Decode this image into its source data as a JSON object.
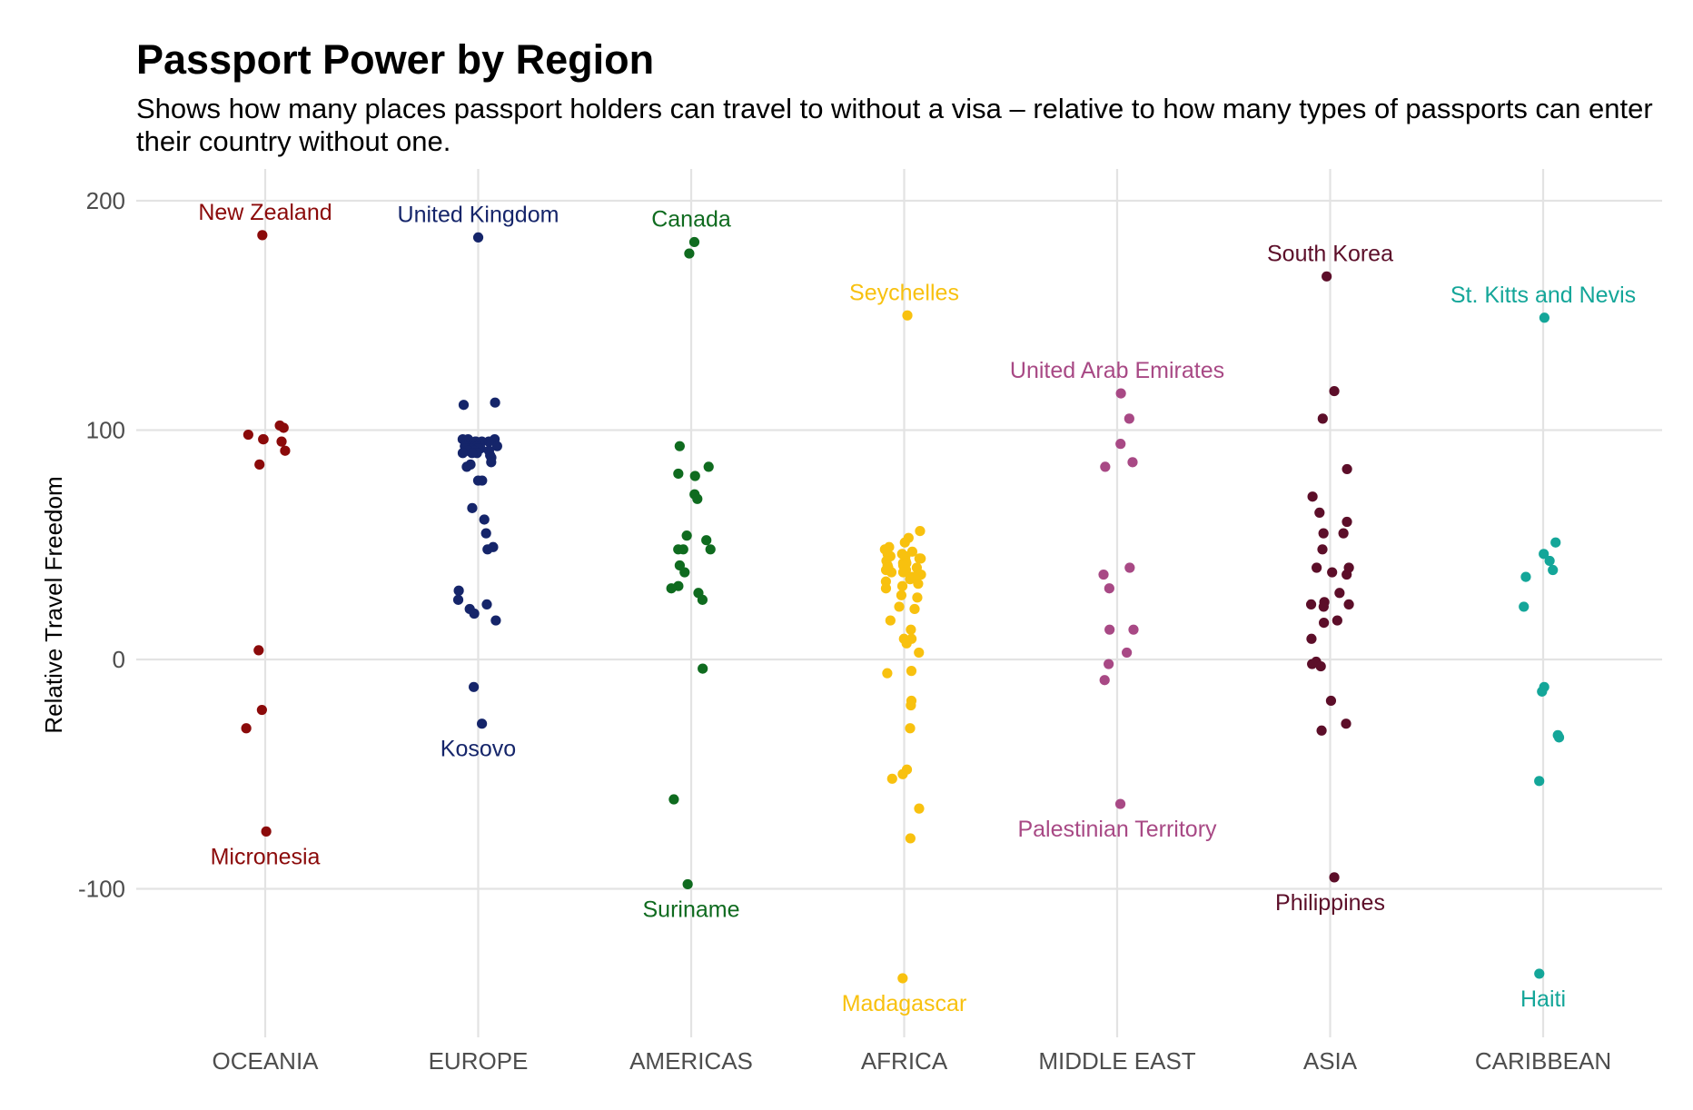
{
  "chart_data": {
    "type": "scatter",
    "title": "Passport Power by Region",
    "subtitle": "Shows how many places passport holders can travel to without a visa – relative to how many types of passports can enter their country without one.",
    "xlabel": "",
    "ylabel": "Relative Travel Freedom",
    "ylim": [
      -165,
      215
    ],
    "yticks": [
      -100,
      0,
      100,
      200
    ],
    "grid": true,
    "legend": "none",
    "categories": [
      "OCEANIA",
      "EUROPE",
      "AMERICAS",
      "AFRICA",
      "MIDDLE EAST",
      "ASIA",
      "CARIBBEAN"
    ],
    "series": [
      {
        "category": "OCEANIA",
        "color": "#8B0A0A",
        "values": [
          185,
          102,
          101,
          98,
          96,
          96,
          95,
          91,
          85,
          4,
          -22,
          -30,
          -75
        ],
        "labels": [
          {
            "text": "New Zealand",
            "value": 185,
            "position": "above"
          },
          {
            "text": "Micronesia",
            "value": -75,
            "position": "below"
          }
        ]
      },
      {
        "category": "EUROPE",
        "color": "#15256A",
        "values": [
          184,
          112,
          111,
          96,
          96,
          96,
          95,
          95,
          95,
          95,
          95,
          94,
          94,
          94,
          94,
          93,
          93,
          93,
          93,
          92,
          92,
          92,
          92,
          91,
          91,
          91,
          90,
          90,
          90,
          89,
          88,
          86,
          85,
          84,
          78,
          78,
          66,
          61,
          55,
          49,
          48,
          30,
          26,
          24,
          22,
          20,
          17,
          -12,
          -28
        ],
        "labels": [
          {
            "text": "United Kingdom",
            "value": 184,
            "position": "above"
          },
          {
            "text": "Kosovo",
            "value": -28,
            "position": "below"
          }
        ]
      },
      {
        "category": "AMERICAS",
        "color": "#0F6B1F",
        "values": [
          182,
          177,
          93,
          84,
          81,
          80,
          72,
          70,
          54,
          52,
          48,
          48,
          48,
          41,
          38,
          32,
          31,
          29,
          26,
          -4,
          -61,
          -98
        ],
        "labels": [
          {
            "text": "Canada",
            "value": 182,
            "position": "above"
          },
          {
            "text": "Suriname",
            "value": -98,
            "position": "below"
          }
        ]
      },
      {
        "category": "AFRICA",
        "color": "#F8C10F",
        "values": [
          150,
          56,
          53,
          51,
          49,
          48,
          47,
          46,
          46,
          45,
          45,
          44,
          44,
          43,
          43,
          42,
          42,
          41,
          41,
          40,
          40,
          39,
          39,
          38,
          38,
          37,
          37,
          36,
          36,
          35,
          34,
          33,
          32,
          31,
          28,
          27,
          23,
          22,
          17,
          13,
          9,
          9,
          7,
          3,
          -5,
          -6,
          -18,
          -20,
          -30,
          -48,
          -50,
          -52,
          -65,
          -78,
          -139
        ],
        "labels": [
          {
            "text": "Seychelles",
            "value": 150,
            "position": "above"
          },
          {
            "text": "Madagascar",
            "value": -139,
            "position": "below"
          }
        ]
      },
      {
        "category": "MIDDLE EAST",
        "color": "#A84985",
        "values": [
          116,
          105,
          94,
          86,
          84,
          40,
          37,
          31,
          13,
          13,
          3,
          -2,
          -9,
          -63
        ],
        "labels": [
          {
            "text": "United Arab Emirates",
            "value": 116,
            "position": "above"
          },
          {
            "text": "Palestinian Territory",
            "value": -63,
            "position": "below"
          }
        ]
      },
      {
        "category": "ASIA",
        "color": "#5C0E29",
        "values": [
          167,
          117,
          105,
          83,
          71,
          64,
          60,
          55,
          55,
          48,
          40,
          40,
          38,
          37,
          29,
          25,
          24,
          24,
          23,
          17,
          16,
          9,
          -1,
          -2,
          -3,
          -18,
          -28,
          -31,
          -95
        ],
        "labels": [
          {
            "text": "South Korea",
            "value": 167,
            "position": "above"
          },
          {
            "text": "Philippines",
            "value": -95,
            "position": "below"
          }
        ]
      },
      {
        "category": "CARIBBEAN",
        "color": "#14A699",
        "values": [
          149,
          51,
          46,
          43,
          39,
          36,
          23,
          -12,
          -14,
          -33,
          -34,
          -53,
          -137
        ],
        "labels": [
          {
            "text": "St. Kitts and Nevis",
            "value": 149,
            "position": "above"
          },
          {
            "text": "Haiti",
            "value": -137,
            "position": "below"
          }
        ]
      }
    ]
  }
}
